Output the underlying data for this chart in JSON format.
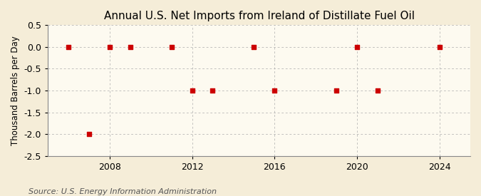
{
  "title": "Annual U.S. Net Imports from Ireland of Distillate Fuel Oil",
  "ylabel": "Thousand Barrels per Day",
  "source": "Source: U.S. Energy Information Administration",
  "years": [
    2006,
    2007,
    2008,
    2009,
    2011,
    2012,
    2013,
    2015,
    2016,
    2019,
    2020,
    2021,
    2024
  ],
  "values": [
    0,
    -2,
    0,
    0,
    0,
    -1,
    -1,
    0,
    -1,
    -1,
    0,
    -1,
    0
  ],
  "xlim": [
    2005.0,
    2025.5
  ],
  "ylim": [
    -2.5,
    0.5
  ],
  "yticks": [
    0.5,
    0.0,
    -0.5,
    -1.0,
    -1.5,
    -2.0,
    -2.5
  ],
  "xticks": [
    2008,
    2012,
    2016,
    2020,
    2024
  ],
  "bg_color": "#f5edd8",
  "plot_bg_color": "#fdfaf0",
  "marker_color": "#cc0000",
  "grid_color": "#aaaaaa",
  "title_fontsize": 11,
  "label_fontsize": 8.5,
  "tick_fontsize": 9,
  "source_fontsize": 8
}
